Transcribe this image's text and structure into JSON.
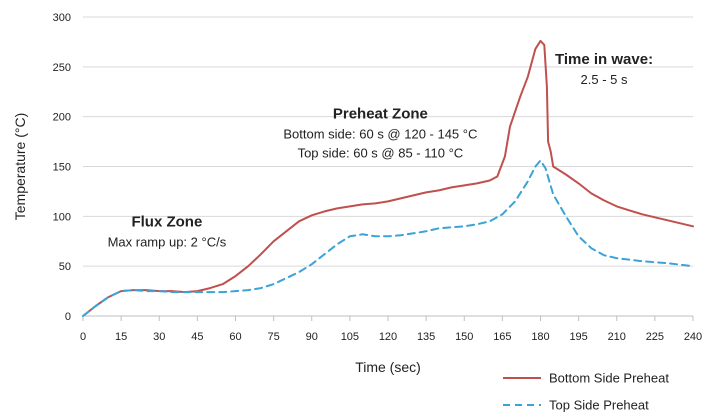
{
  "chart_data": {
    "type": "line",
    "title": "",
    "xlabel": "Time (sec)",
    "ylabel": "Temperature (°C)",
    "xlim": [
      0,
      240
    ],
    "ylim": [
      0,
      300
    ],
    "xticks": [
      "0",
      "15",
      "30",
      "45",
      "60",
      "75",
      "90",
      "105",
      "120",
      "135",
      "150",
      "165",
      "180",
      "195",
      "210",
      "225",
      "240"
    ],
    "yticks": [
      "0",
      "50",
      "100",
      "150",
      "200",
      "250",
      "300"
    ],
    "grid": "horizontal",
    "legend_position": "bottom-right",
    "series": [
      {
        "name": "Bottom Side Preheat",
        "color": "#c0504d",
        "style": "solid",
        "points": [
          [
            0,
            0
          ],
          [
            5,
            10
          ],
          [
            10,
            19
          ],
          [
            15,
            25
          ],
          [
            20,
            26
          ],
          [
            25,
            26
          ],
          [
            30,
            25
          ],
          [
            35,
            25
          ],
          [
            40,
            24
          ],
          [
            45,
            25
          ],
          [
            50,
            28
          ],
          [
            55,
            32
          ],
          [
            60,
            40
          ],
          [
            65,
            50
          ],
          [
            70,
            62
          ],
          [
            75,
            75
          ],
          [
            80,
            85
          ],
          [
            85,
            95
          ],
          [
            90,
            101
          ],
          [
            95,
            105
          ],
          [
            100,
            108
          ],
          [
            105,
            110
          ],
          [
            110,
            112
          ],
          [
            115,
            113
          ],
          [
            120,
            115
          ],
          [
            125,
            118
          ],
          [
            130,
            121
          ],
          [
            135,
            124
          ],
          [
            140,
            126
          ],
          [
            145,
            129
          ],
          [
            150,
            131
          ],
          [
            155,
            133
          ],
          [
            160,
            136
          ],
          [
            163,
            140
          ],
          [
            166,
            160
          ],
          [
            168,
            190
          ],
          [
            172,
            220
          ],
          [
            175,
            240
          ],
          [
            178,
            268
          ],
          [
            180,
            276
          ],
          [
            181.5,
            272
          ],
          [
            182.5,
            230
          ],
          [
            183,
            175
          ],
          [
            184,
            165
          ],
          [
            185,
            150
          ],
          [
            190,
            142
          ],
          [
            195,
            133
          ],
          [
            200,
            123
          ],
          [
            205,
            116
          ],
          [
            210,
            110
          ],
          [
            215,
            106
          ],
          [
            220,
            102
          ],
          [
            225,
            99
          ],
          [
            230,
            96
          ],
          [
            235,
            93
          ],
          [
            240,
            90
          ]
        ]
      },
      {
        "name": "Top Side Preheat",
        "color": "#3ba3d8",
        "style": "dashed",
        "points": [
          [
            0,
            0
          ],
          [
            5,
            10
          ],
          [
            10,
            19
          ],
          [
            15,
            25
          ],
          [
            20,
            26
          ],
          [
            25,
            25
          ],
          [
            30,
            25
          ],
          [
            35,
            24
          ],
          [
            40,
            24
          ],
          [
            45,
            24
          ],
          [
            50,
            24
          ],
          [
            55,
            24
          ],
          [
            60,
            25
          ],
          [
            65,
            26
          ],
          [
            70,
            28
          ],
          [
            75,
            32
          ],
          [
            80,
            38
          ],
          [
            85,
            44
          ],
          [
            90,
            52
          ],
          [
            95,
            62
          ],
          [
            100,
            72
          ],
          [
            105,
            80
          ],
          [
            110,
            82
          ],
          [
            115,
            80
          ],
          [
            120,
            80
          ],
          [
            125,
            81
          ],
          [
            130,
            83
          ],
          [
            135,
            85
          ],
          [
            140,
            88
          ],
          [
            145,
            89
          ],
          [
            150,
            90
          ],
          [
            155,
            92
          ],
          [
            160,
            95
          ],
          [
            165,
            102
          ],
          [
            170,
            115
          ],
          [
            175,
            135
          ],
          [
            178,
            150
          ],
          [
            180,
            156
          ],
          [
            182,
            148
          ],
          [
            185,
            122
          ],
          [
            190,
            100
          ],
          [
            195,
            80
          ],
          [
            200,
            68
          ],
          [
            205,
            61
          ],
          [
            210,
            58
          ],
          [
            220,
            55
          ],
          [
            230,
            53
          ],
          [
            240,
            50
          ]
        ]
      }
    ],
    "annotations": [
      {
        "id": "flux",
        "title": "Flux Zone",
        "lines": [
          "Max ramp up: 2 °C/s"
        ],
        "at_x": 33,
        "at_y": 90
      },
      {
        "id": "preheat",
        "title": "Preheat Zone",
        "lines": [
          "Bottom side: 60 s @ 120 - 145 °C",
          "Top side: 60 s @ 85 - 110 °C"
        ],
        "at_x": 117,
        "at_y": 198
      },
      {
        "id": "wave",
        "title": "Time in wave:",
        "lines": [
          "2.5 - 5 s"
        ],
        "at_x": 205,
        "at_y": 253
      }
    ]
  }
}
